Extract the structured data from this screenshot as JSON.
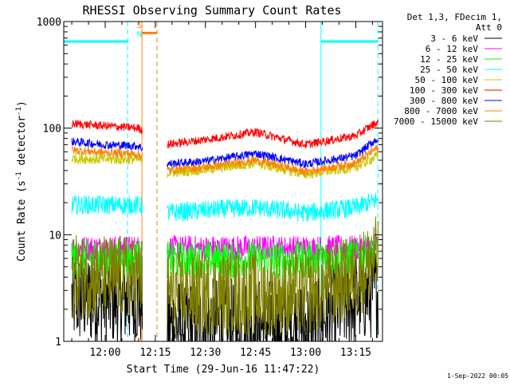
{
  "chart_data": {
    "type": "line",
    "title": "RHESSI Observing Summary Count Rates",
    "xlabel": "Start Time (29-Jun-16 11:47:22)",
    "ylabel_main": "Count Rate (s",
    "ylabel_sup1": "-1",
    "ylabel_mid": " detector",
    "ylabel_sup2": "-1",
    "ylabel_end": ")",
    "y_scale": "log",
    "ylim": [
      1,
      1000
    ],
    "xlim_minutes": [
      -12.4,
      83.0
    ],
    "x_ticks": [
      {
        "label": "12:00",
        "minute": 0
      },
      {
        "label": "12:15",
        "minute": 15
      },
      {
        "label": "12:30",
        "minute": 30
      },
      {
        "label": "12:45",
        "minute": 45
      },
      {
        "label": "13:00",
        "minute": 60
      },
      {
        "label": "13:15",
        "minute": 75
      }
    ],
    "y_ticks": [
      {
        "label": "1",
        "value": 1
      },
      {
        "label": "10",
        "value": 10
      },
      {
        "label": "100",
        "value": 100
      },
      {
        "label": "1000",
        "value": 1000
      }
    ],
    "legend": {
      "header1": "Det 1,3, FDecim 1,",
      "header2": "Att 0",
      "placement": "right"
    },
    "series": [
      {
        "name": "3 - 6 keV",
        "color": "#000000",
        "times": [
          -10,
          0,
          10,
          18,
          30,
          45,
          60,
          75,
          81
        ],
        "values": [
          2.5,
          2.5,
          2.5,
          1.4,
          1.4,
          1.4,
          1.4,
          2.5,
          3.0
        ],
        "noise": 0.45
      },
      {
        "name": "6 - 12 keV",
        "color": "#ff00ff",
        "times": [
          -10,
          0,
          10,
          18,
          30,
          45,
          60,
          75,
          81
        ],
        "values": [
          7.5,
          7.5,
          7.5,
          7.5,
          7.5,
          7.5,
          7.5,
          7.5,
          8.0
        ],
        "noise": 0.12
      },
      {
        "name": "12 - 25 keV",
        "color": "#00ff00",
        "times": [
          -10,
          0,
          10,
          18,
          30,
          45,
          60,
          75,
          81
        ],
        "values": [
          6.0,
          6.0,
          6.0,
          5.8,
          5.8,
          5.8,
          5.8,
          6.2,
          7.0
        ],
        "noise": 0.18
      },
      {
        "name": "25 - 50 keV",
        "color": "#00ffff",
        "times": [
          -10,
          0,
          10,
          18,
          30,
          45,
          60,
          75,
          81
        ],
        "values": [
          19,
          19,
          19,
          16,
          17,
          18,
          16,
          18,
          21
        ],
        "noise": 0.09
      },
      {
        "name": "50 - 100 keV",
        "color": "#c8c800",
        "times": [
          -10,
          0,
          10,
          18,
          30,
          45,
          60,
          75,
          81
        ],
        "values": [
          52,
          51,
          51,
          38,
          41,
          47,
          37,
          43,
          54
        ],
        "noise": 0.05
      },
      {
        "name": "100 - 300 keV",
        "color": "#ff0000",
        "times": [
          -10,
          0,
          10,
          18,
          30,
          45,
          60,
          75,
          81
        ],
        "values": [
          110,
          105,
          100,
          70,
          78,
          92,
          70,
          85,
          112
        ],
        "noise": 0.04
      },
      {
        "name": "300 - 800 keV",
        "color": "#0000ff",
        "times": [
          -10,
          0,
          10,
          18,
          30,
          45,
          60,
          75,
          81
        ],
        "values": [
          75,
          70,
          68,
          46,
          49,
          58,
          46,
          55,
          78
        ],
        "noise": 0.04
      },
      {
        "name": "800 - 7000 keV",
        "color": "#ff8000",
        "times": [
          -10,
          0,
          10,
          18,
          30,
          45,
          60,
          75,
          81
        ],
        "values": [
          62,
          59,
          57,
          40,
          43,
          50,
          39,
          47,
          64
        ],
        "noise": 0.04
      },
      {
        "name": "7000 - 15000 keV",
        "color": "#808000",
        "times": [
          -10,
          0,
          10,
          18,
          30,
          45,
          60,
          75,
          81
        ],
        "values": [
          4.0,
          4.0,
          4.0,
          2.8,
          2.8,
          2.8,
          2.8,
          4.0,
          6.0
        ],
        "noise": 0.4
      }
    ],
    "gaps_minutes": [
      [
        11.2,
        18.5
      ]
    ],
    "flags": {
      "saa_flag_color": "#00ffff",
      "saa_bars": [
        {
          "start": -12.4,
          "end": 7.0,
          "level": 650
        },
        {
          "start": 64.5,
          "end": 81.5,
          "level": 650
        }
      ],
      "night_bar": {
        "start": 11.0,
        "end": 15.5,
        "level": 780,
        "color": "#ff8000"
      },
      "vertical_lines": [
        {
          "minute": 6.7,
          "color": "#00ffff",
          "style": "dashed"
        },
        {
          "minute": 64.6,
          "color": "#00ffff",
          "style": "solid"
        },
        {
          "minute": 81.6,
          "color": "#00ffff",
          "style": "dashed"
        },
        {
          "minute": 11.0,
          "color": "#ff8000",
          "style": "solid"
        },
        {
          "minute": 15.5,
          "color": "#ff8000",
          "style": "dashed"
        }
      ],
      "s_label": "S",
      "s_color": "#ff8000",
      "n_label": "N",
      "n_color": "#00ffff"
    },
    "timestamp": "1-Sep-2022 00:05"
  }
}
